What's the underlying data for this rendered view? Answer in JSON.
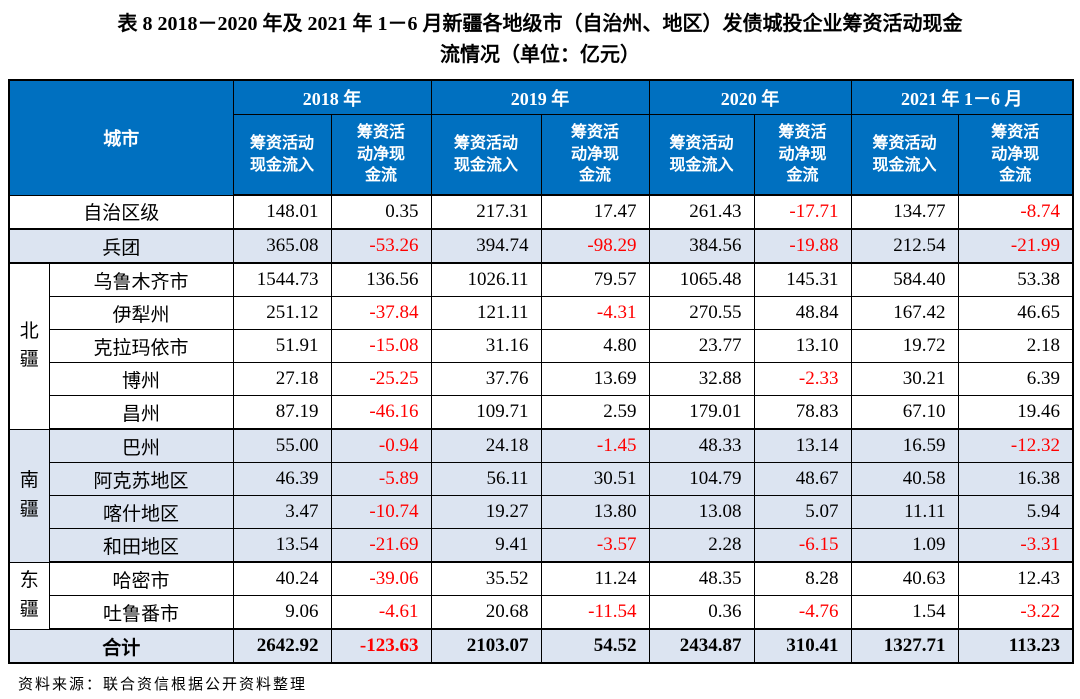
{
  "title": {
    "line1": "表 8  2018－2020 年及 2021 年 1－6 月新疆各地级市（自治州、地区）发债城投企业筹资活动现金",
    "line2": "流情况（单位：亿元）"
  },
  "source_note": "资料来源：联合资信根据公开资料整理",
  "colors": {
    "header_bg": "#0070C0",
    "header_text": "#ffffff",
    "shaded_row_bg": "#dce4f1",
    "negative_value": "#ff0000",
    "border": "#000000"
  },
  "table": {
    "corner_header": "城市",
    "year_groups": [
      "2018 年",
      "2019 年",
      "2020 年",
      "2021 年 1－6 月"
    ],
    "sub_headers": {
      "inflow": "筹资活动现金流入",
      "net": "筹资活动净现金流"
    },
    "rows": [
      {
        "region": "",
        "region_rowspan": 0,
        "city": "自治区级",
        "full_width_city": true,
        "shaded": false,
        "bold": false,
        "section_end": true,
        "values": [
          "148.01",
          "0.35",
          "217.31",
          "17.47",
          "261.43",
          "-17.71",
          "134.77",
          "-8.74"
        ]
      },
      {
        "region": "",
        "region_rowspan": 0,
        "city": "兵团",
        "full_width_city": true,
        "shaded": true,
        "bold": false,
        "section_end": true,
        "values": [
          "365.08",
          "-53.26",
          "394.74",
          "-98.29",
          "384.56",
          "-19.88",
          "212.54",
          "-21.99"
        ]
      },
      {
        "region": "北疆",
        "region_rowspan": 5,
        "city": "乌鲁木齐市",
        "full_width_city": false,
        "shaded": false,
        "bold": false,
        "section_end": false,
        "values": [
          "1544.73",
          "136.56",
          "1026.11",
          "79.57",
          "1065.48",
          "145.31",
          "584.40",
          "53.38"
        ]
      },
      {
        "region": "",
        "region_rowspan": 0,
        "city": "伊犁州",
        "full_width_city": false,
        "shaded": false,
        "bold": false,
        "section_end": false,
        "values": [
          "251.12",
          "-37.84",
          "121.11",
          "-4.31",
          "270.55",
          "48.84",
          "167.42",
          "46.65"
        ]
      },
      {
        "region": "",
        "region_rowspan": 0,
        "city": "克拉玛依市",
        "full_width_city": false,
        "shaded": false,
        "bold": false,
        "section_end": false,
        "values": [
          "51.91",
          "-15.08",
          "31.16",
          "4.80",
          "23.77",
          "13.10",
          "19.72",
          "2.18"
        ]
      },
      {
        "region": "",
        "region_rowspan": 0,
        "city": "博州",
        "full_width_city": false,
        "shaded": false,
        "bold": false,
        "section_end": false,
        "values": [
          "27.18",
          "-25.25",
          "37.76",
          "13.69",
          "32.88",
          "-2.33",
          "30.21",
          "6.39"
        ]
      },
      {
        "region": "",
        "region_rowspan": 0,
        "city": "昌州",
        "full_width_city": false,
        "shaded": false,
        "bold": false,
        "section_end": true,
        "values": [
          "87.19",
          "-46.16",
          "109.71",
          "2.59",
          "179.01",
          "78.83",
          "67.10",
          "19.46"
        ]
      },
      {
        "region": "南疆",
        "region_rowspan": 4,
        "city": "巴州",
        "full_width_city": false,
        "shaded": true,
        "bold": false,
        "section_end": false,
        "values": [
          "55.00",
          "-0.94",
          "24.18",
          "-1.45",
          "48.33",
          "13.14",
          "16.59",
          "-12.32"
        ]
      },
      {
        "region": "",
        "region_rowspan": 0,
        "city": "阿克苏地区",
        "full_width_city": false,
        "shaded": true,
        "bold": false,
        "section_end": false,
        "values": [
          "46.39",
          "-5.89",
          "56.11",
          "30.51",
          "104.79",
          "48.67",
          "40.58",
          "16.38"
        ]
      },
      {
        "region": "",
        "region_rowspan": 0,
        "city": "喀什地区",
        "full_width_city": false,
        "shaded": true,
        "bold": false,
        "section_end": false,
        "values": [
          "3.47",
          "-10.74",
          "19.27",
          "13.80",
          "13.08",
          "5.07",
          "11.11",
          "5.94"
        ]
      },
      {
        "region": "",
        "region_rowspan": 0,
        "city": "和田地区",
        "full_width_city": false,
        "shaded": true,
        "bold": false,
        "section_end": true,
        "values": [
          "13.54",
          "-21.69",
          "9.41",
          "-3.57",
          "2.28",
          "-6.15",
          "1.09",
          "-3.31"
        ]
      },
      {
        "region": "东疆",
        "region_rowspan": 2,
        "city": "哈密市",
        "full_width_city": false,
        "shaded": false,
        "bold": false,
        "section_end": false,
        "values": [
          "40.24",
          "-39.06",
          "35.52",
          "11.24",
          "48.35",
          "8.28",
          "40.63",
          "12.43"
        ]
      },
      {
        "region": "",
        "region_rowspan": 0,
        "city": "吐鲁番市",
        "full_width_city": false,
        "shaded": false,
        "bold": false,
        "section_end": true,
        "values": [
          "9.06",
          "-4.61",
          "20.68",
          "-11.54",
          "0.36",
          "-4.76",
          "1.54",
          "-3.22"
        ]
      },
      {
        "region": "",
        "region_rowspan": 0,
        "city": "合计",
        "full_width_city": true,
        "shaded": true,
        "bold": true,
        "section_end": false,
        "values": [
          "2642.92",
          "-123.63",
          "2103.07",
          "54.52",
          "2434.87",
          "310.41",
          "1327.71",
          "113.23"
        ]
      }
    ]
  }
}
